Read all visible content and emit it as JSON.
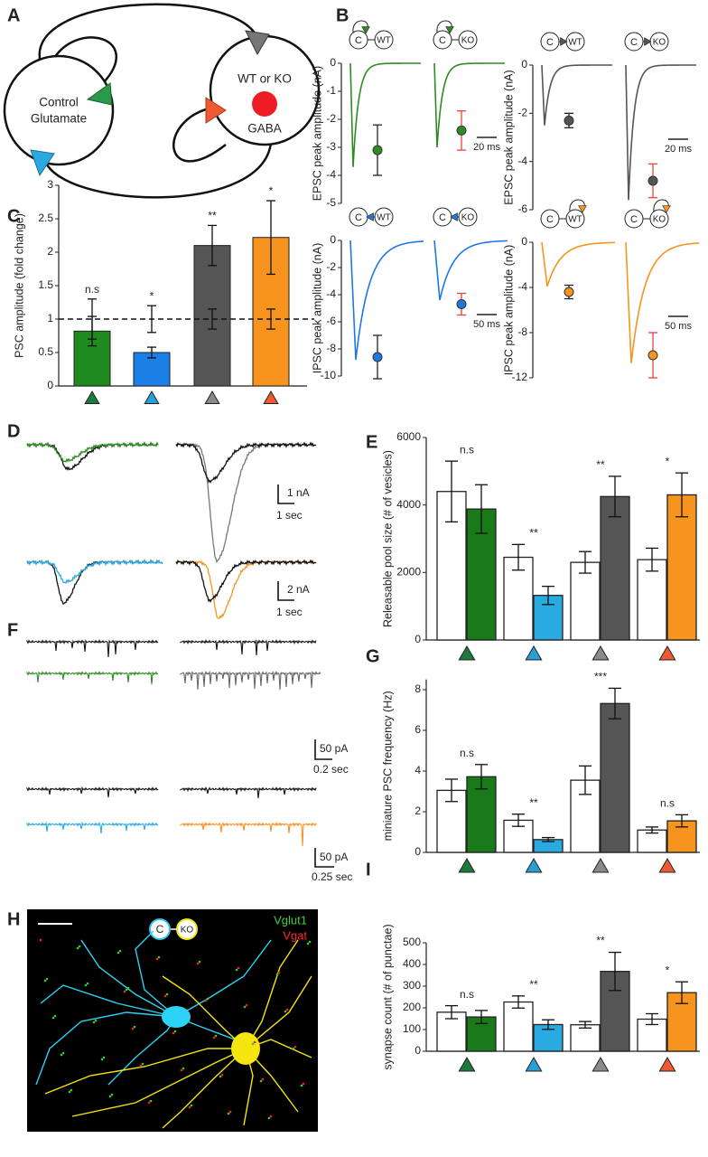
{
  "panel_labels": [
    "A",
    "B",
    "C",
    "D",
    "E",
    "F",
    "G",
    "H",
    "I"
  ],
  "diagram": {
    "left_cell_lines": [
      "Control",
      "Glutamate"
    ],
    "right_cell": "WT or KO",
    "right_label": "GABA"
  },
  "d_scale_bars": [
    [
      "1 nA",
      "1 sec"
    ],
    [
      "2 nA",
      "1 sec"
    ]
  ],
  "f_scale_bars": [
    [
      "50 pA",
      "0.2 sec"
    ],
    [
      "50 pA",
      "0.25 sec"
    ]
  ],
  "h_image": {
    "icon_labels": [
      "C",
      "KO"
    ],
    "channels": [
      "Vglut1",
      "Vgat"
    ]
  },
  "chart_data": [
    {
      "type": "trace",
      "ylabel": "EPSC peak amplitude (nA)",
      "ylim": [
        -5,
        0
      ],
      "yticks": [
        0,
        -1,
        -2,
        -3,
        -4,
        -5
      ],
      "icon_labels": [
        [
          "C",
          "WT"
        ],
        [
          "C",
          "KO"
        ]
      ],
      "color": "#2e8b22",
      "trace_peaks": [
        -3.7,
        -3.0
      ],
      "values": [
        -3.1,
        -2.4
      ],
      "errors": [
        0.9,
        0.7
      ],
      "error_colors": [
        "#222222",
        "#e8433a"
      ],
      "scale_bar": "20 ms"
    },
    {
      "type": "trace",
      "ylabel": "EPSC peak amplitude (nA)",
      "ylim": [
        -6,
        0
      ],
      "yticks": [
        0,
        -2,
        -4,
        -6
      ],
      "icon_labels": [
        [
          "C",
          "WT"
        ],
        [
          "C",
          "KO"
        ]
      ],
      "color": "#555555",
      "trace_peaks": [
        -2.5,
        -5.6
      ],
      "values": [
        -2.3,
        -4.8
      ],
      "errors": [
        0.3,
        0.7
      ],
      "error_colors": [
        "#222222",
        "#e8433a"
      ],
      "scale_bar": "20 ms"
    },
    {
      "type": "trace",
      "ylabel": "IPSC peak amplitude (nA)",
      "ylim": [
        -10,
        0
      ],
      "yticks": [
        0,
        -2,
        -4,
        -6,
        -8,
        -10
      ],
      "icon_labels": [
        [
          "C",
          "WT"
        ],
        [
          "C",
          "KO"
        ]
      ],
      "color": "#1f78e0",
      "trace_peaks": [
        -8.8,
        -4.4
      ],
      "values": [
        -8.6,
        -4.7
      ],
      "errors": [
        1.6,
        0.8
      ],
      "error_colors": [
        "#222222",
        "#e8433a"
      ],
      "scale_bar": "50 ms"
    },
    {
      "type": "trace",
      "ylabel": "IPSC peak amplitude (nA)",
      "ylim": [
        -12,
        0
      ],
      "yticks": [
        0,
        -4,
        -8,
        -12
      ],
      "icon_labels": [
        [
          "C",
          "WT"
        ],
        [
          "C",
          "KO"
        ]
      ],
      "color": "#f7941d",
      "trace_peaks": [
        -3.9,
        -10.7
      ],
      "values": [
        -4.4,
        -10
      ],
      "errors": [
        0.6,
        2
      ],
      "error_colors": [
        "#222222",
        "#e8433a"
      ],
      "scale_bar": "50 ms"
    },
    {
      "type": "bar",
      "ylabel": "PSC amplitude (fold change)",
      "ylim": [
        0,
        3
      ],
      "yticks": [
        0,
        0.5,
        1,
        1.5,
        2,
        2.5,
        3
      ],
      "categories": [
        null,
        null,
        null,
        null
      ],
      "category_colors": [
        "#1d7a3c",
        "#2a9fd6",
        "#8a8a8a",
        "#f05a32"
      ],
      "values": [
        0.82,
        0.5,
        2.1,
        2.22
      ],
      "errors": [
        0.22,
        0.08,
        0.3,
        0.55
      ],
      "colors": [
        "#1f8a1f",
        "#1a7fe6",
        "#555555",
        "#f7941d"
      ],
      "reference_line": 1,
      "control_errors": [
        0.3,
        0.2,
        0.15,
        0.15
      ],
      "significance": [
        "n.s",
        "*",
        "**",
        "*"
      ]
    },
    {
      "type": "grouped-bar",
      "ylabel": "Releasable pool size (# of vesicles)",
      "ylim": [
        0,
        6000
      ],
      "yticks": [
        0,
        2000,
        4000,
        6000
      ],
      "categories": [
        null,
        null,
        null,
        null
      ],
      "category_colors": [
        "#1d7a3c",
        "#2a9fd6",
        "#8a8a8a",
        "#f05a32"
      ],
      "series": [
        {
          "color": "#ffffff",
          "values": [
            4400,
            2450,
            2300,
            2380
          ],
          "errors": [
            900,
            380,
            320,
            340
          ]
        },
        {
          "colors": [
            "#1a7a1a",
            "#29abe2",
            "#555555",
            "#f7941d"
          ],
          "values": [
            3880,
            1320,
            4250,
            4300
          ],
          "errors": [
            720,
            270,
            600,
            650
          ]
        }
      ],
      "significance": [
        "n.s",
        "**",
        "**",
        "*"
      ]
    },
    {
      "type": "grouped-bar",
      "ylabel": "miniature PSC frequency (Hz)",
      "ylim": [
        0,
        8.5
      ],
      "yticks": [
        0,
        2,
        4,
        6,
        8
      ],
      "categories": [
        null,
        null,
        null,
        null
      ],
      "category_colors": [
        "#1d7a3c",
        "#2a9fd6",
        "#8a8a8a",
        "#f05a32"
      ],
      "series": [
        {
          "color": "#ffffff",
          "values": [
            3.05,
            1.58,
            3.55,
            1.1
          ],
          "errors": [
            0.55,
            0.3,
            0.7,
            0.15
          ]
        },
        {
          "colors": [
            "#1a7a1a",
            "#29abe2",
            "#555555",
            "#f7941d"
          ],
          "values": [
            3.72,
            0.63,
            7.32,
            1.55
          ],
          "errors": [
            0.6,
            0.1,
            0.75,
            0.3
          ]
        }
      ],
      "significance": [
        "n.s",
        "**",
        "***",
        "n.s"
      ]
    },
    {
      "type": "grouped-bar",
      "ylabel": "synapse count (# of punctae)",
      "ylim": [
        0,
        500
      ],
      "yticks": [
        0,
        100,
        200,
        300,
        400,
        500
      ],
      "categories": [
        null,
        null,
        null,
        null
      ],
      "category_colors": [
        "#1d7a3c",
        "#2a9fd6",
        "#8a8a8a",
        "#f05a32"
      ],
      "series": [
        {
          "color": "#ffffff",
          "values": [
            180,
            227,
            122,
            148
          ],
          "errors": [
            30,
            28,
            15,
            25
          ]
        },
        {
          "colors": [
            "#1a7a1a",
            "#29abe2",
            "#555555",
            "#f7941d"
          ],
          "values": [
            158,
            123,
            368,
            270
          ],
          "errors": [
            30,
            22,
            88,
            50
          ]
        }
      ],
      "significance": [
        "n.s",
        "**",
        "**",
        "*"
      ]
    }
  ]
}
